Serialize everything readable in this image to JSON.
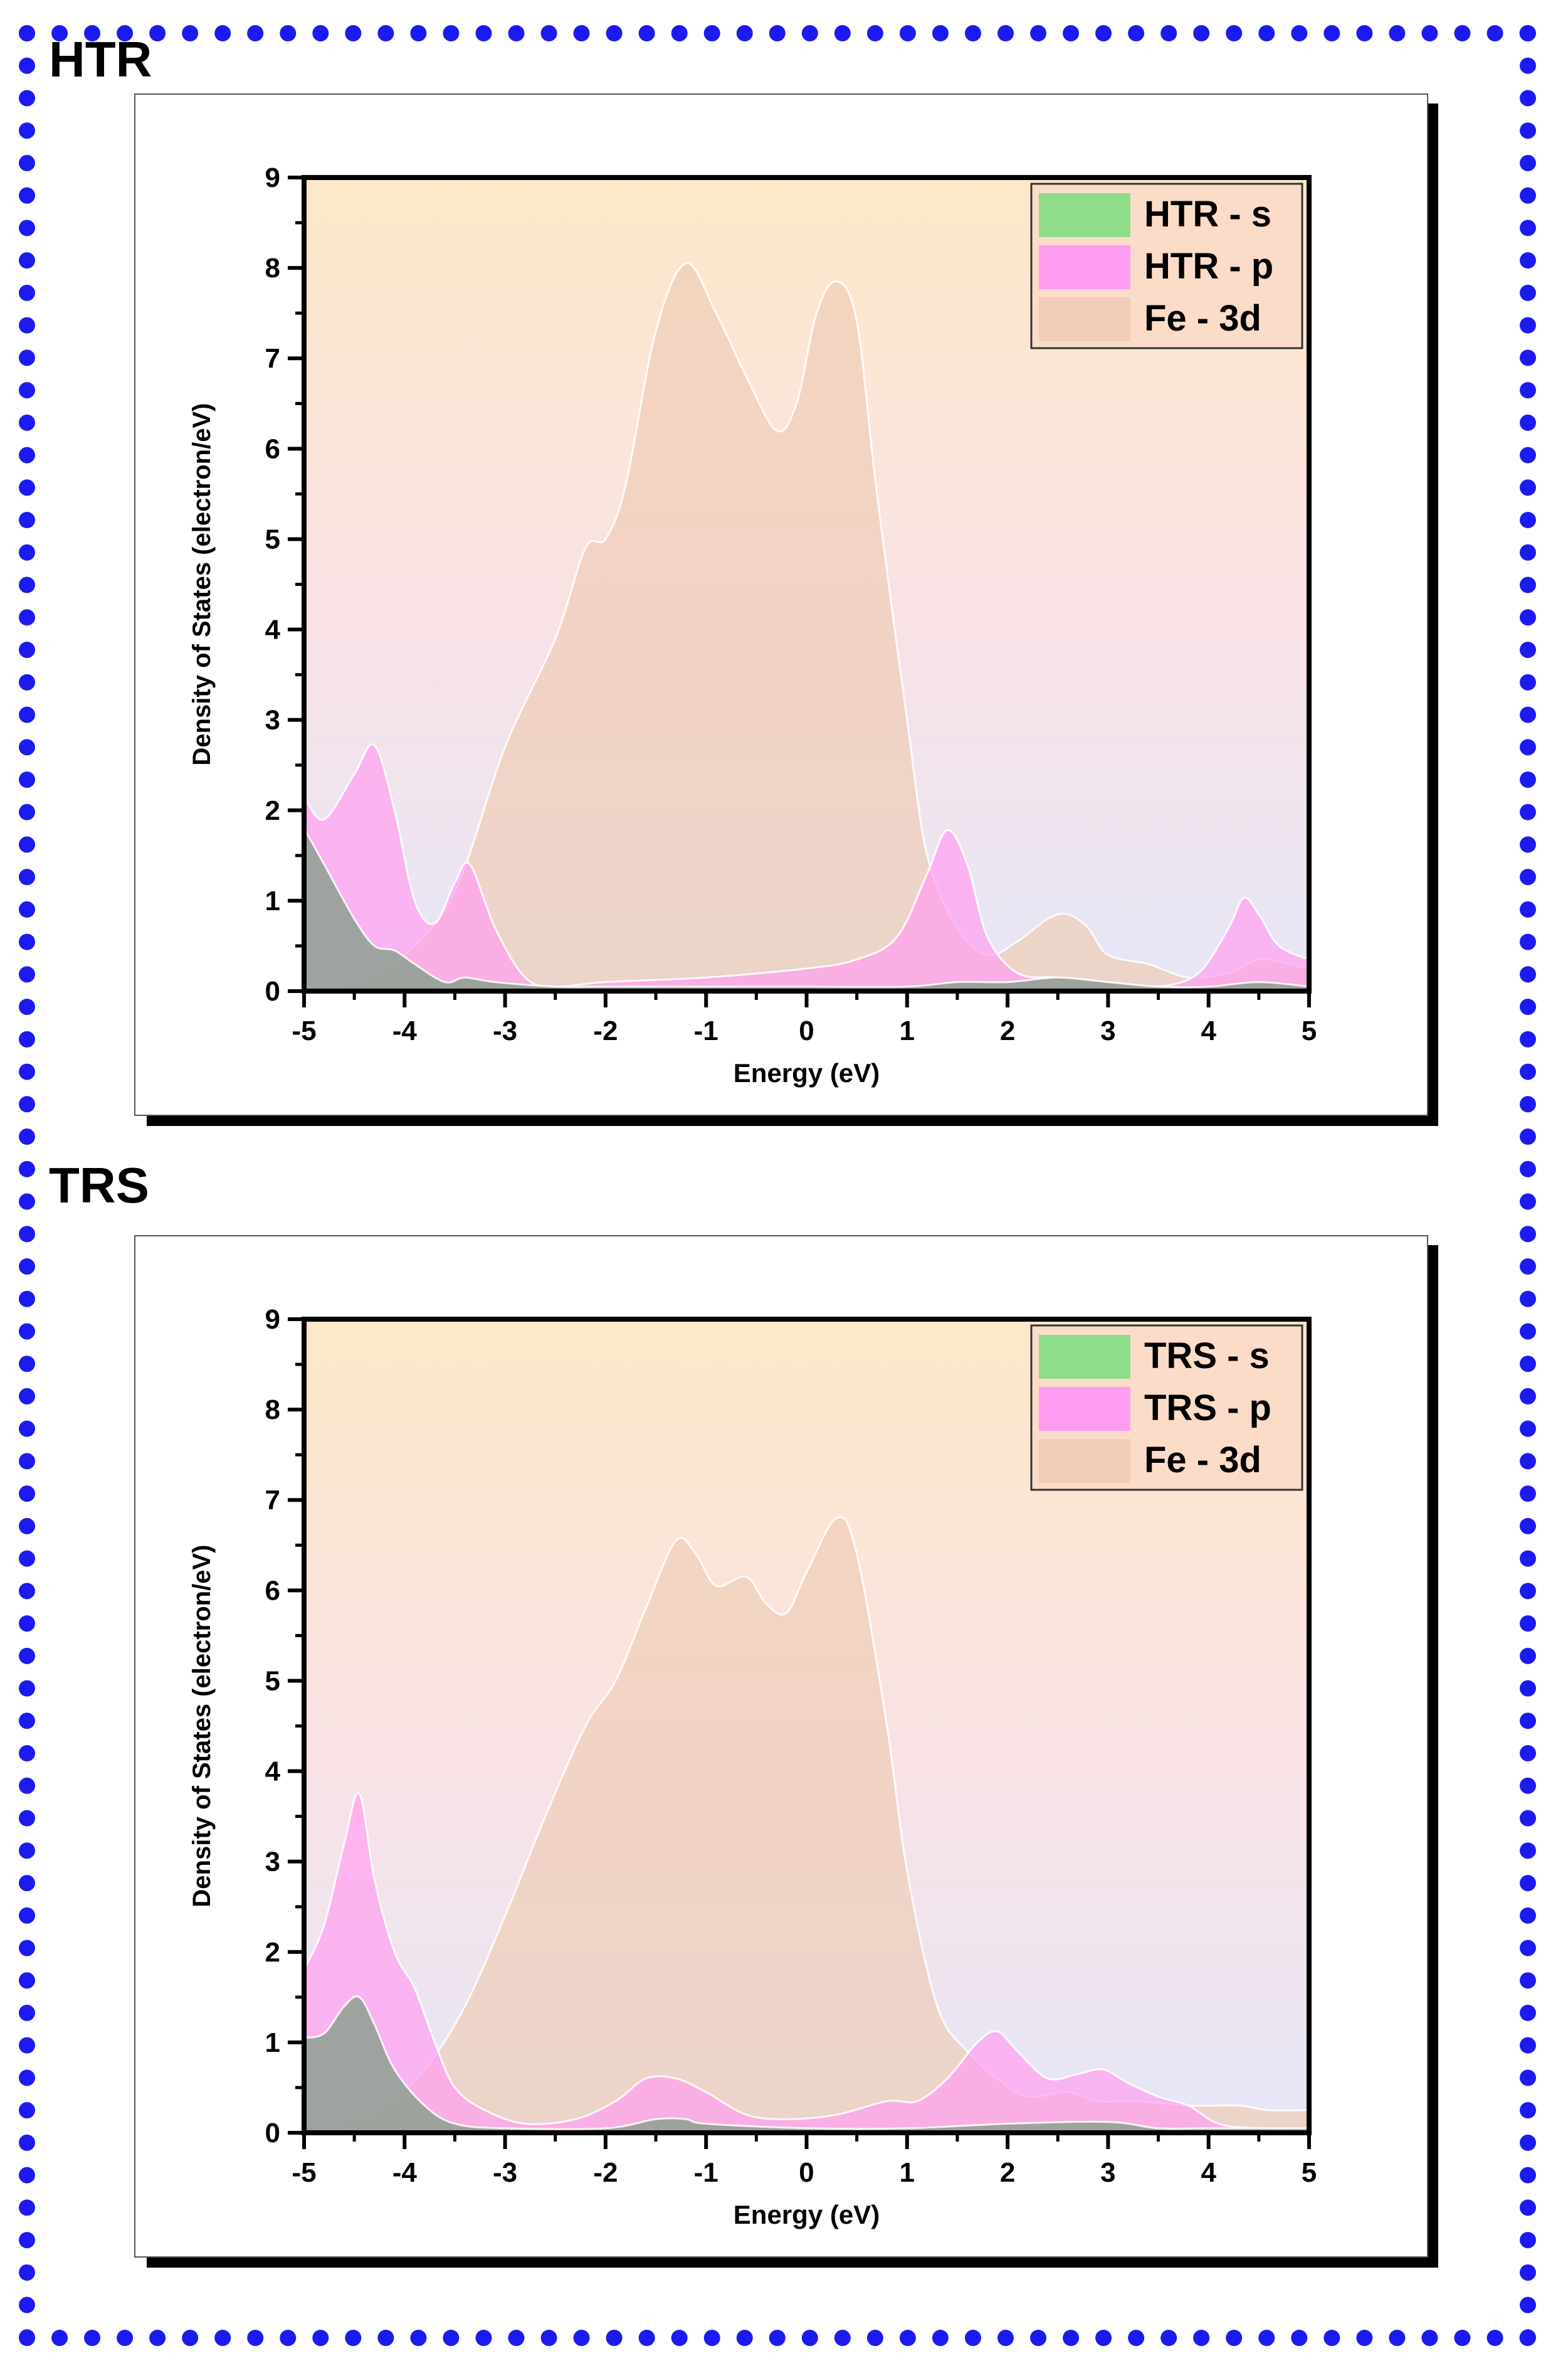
{
  "panels": [
    {
      "title": "HTR"
    },
    {
      "title": "TRS"
    }
  ],
  "colors": {
    "frame": "#1b1bf0",
    "s": "#8fdc8a",
    "p": "#ff9ef0",
    "d": "#efcdb8",
    "bg_top": "#fde8c8",
    "bg_bottom": "#e6e6f6"
  },
  "chart_data": [
    {
      "type": "area",
      "title": "",
      "xlabel": "Energy (eV)",
      "ylabel": "Density of States (electron/eV)",
      "xlim": [
        -5,
        5
      ],
      "ylim": [
        0,
        9
      ],
      "xticks": [
        "-5",
        "-4",
        "-3",
        "-2",
        "-1",
        "0",
        "1",
        "2",
        "3",
        "4",
        "5"
      ],
      "yticks": [
        "0",
        "1",
        "2",
        "3",
        "4",
        "5",
        "6",
        "7",
        "8",
        "9"
      ],
      "legend_position": "top-right",
      "series": [
        {
          "name": "Fe - 3d",
          "key": "d",
          "points": [
            [
              -5,
              0.05
            ],
            [
              -4.5,
              0.1
            ],
            [
              -4,
              0.4
            ],
            [
              -3.5,
              1.1
            ],
            [
              -3,
              2.7
            ],
            [
              -2.5,
              3.9
            ],
            [
              -2.2,
              4.9
            ],
            [
              -2,
              5.0
            ],
            [
              -1.8,
              5.6
            ],
            [
              -1.5,
              7.3
            ],
            [
              -1.2,
              8.05
            ],
            [
              -0.9,
              7.5
            ],
            [
              -0.6,
              6.8
            ],
            [
              -0.3,
              6.2
            ],
            [
              -0.1,
              6.5
            ],
            [
              0.1,
              7.5
            ],
            [
              0.3,
              7.85
            ],
            [
              0.5,
              7.4
            ],
            [
              0.7,
              5.5
            ],
            [
              1,
              3.0
            ],
            [
              1.2,
              1.5
            ],
            [
              1.5,
              0.7
            ],
            [
              1.8,
              0.4
            ],
            [
              2.1,
              0.55
            ],
            [
              2.4,
              0.8
            ],
            [
              2.6,
              0.85
            ],
            [
              2.8,
              0.7
            ],
            [
              3,
              0.4
            ],
            [
              3.4,
              0.3
            ],
            [
              3.8,
              0.15
            ],
            [
              4.2,
              0.2
            ],
            [
              4.5,
              0.35
            ],
            [
              4.8,
              0.3
            ],
            [
              5,
              0.25
            ]
          ]
        },
        {
          "name": "HTR - p",
          "key": "p",
          "points": [
            [
              -5,
              2.15
            ],
            [
              -4.8,
              1.9
            ],
            [
              -4.5,
              2.4
            ],
            [
              -4.3,
              2.72
            ],
            [
              -4.1,
              2.0
            ],
            [
              -3.9,
              1.0
            ],
            [
              -3.7,
              0.75
            ],
            [
              -3.5,
              1.2
            ],
            [
              -3.35,
              1.4
            ],
            [
              -3.1,
              0.7
            ],
            [
              -2.8,
              0.15
            ],
            [
              -2.5,
              0.05
            ],
            [
              -2,
              0.1
            ],
            [
              -1,
              0.15
            ],
            [
              0,
              0.25
            ],
            [
              0.5,
              0.35
            ],
            [
              0.9,
              0.6
            ],
            [
              1.2,
              1.3
            ],
            [
              1.4,
              1.78
            ],
            [
              1.6,
              1.4
            ],
            [
              1.8,
              0.6
            ],
            [
              2.1,
              0.2
            ],
            [
              2.5,
              0.15
            ],
            [
              3,
              0.1
            ],
            [
              3.5,
              0.05
            ],
            [
              3.9,
              0.2
            ],
            [
              4.2,
              0.7
            ],
            [
              4.35,
              1.03
            ],
            [
              4.5,
              0.85
            ],
            [
              4.7,
              0.5
            ],
            [
              5,
              0.35
            ]
          ]
        },
        {
          "name": "HTR - s",
          "key": "s",
          "points": [
            [
              -5,
              1.8
            ],
            [
              -4.8,
              1.4
            ],
            [
              -4.5,
              0.8
            ],
            [
              -4.3,
              0.5
            ],
            [
              -4.1,
              0.45
            ],
            [
              -3.9,
              0.3
            ],
            [
              -3.6,
              0.1
            ],
            [
              -3.4,
              0.15
            ],
            [
              -3.1,
              0.1
            ],
            [
              -2.5,
              0.05
            ],
            [
              -2,
              0.05
            ],
            [
              -1,
              0.05
            ],
            [
              0,
              0.05
            ],
            [
              1,
              0.05
            ],
            [
              1.5,
              0.1
            ],
            [
              2,
              0.1
            ],
            [
              2.5,
              0.15
            ],
            [
              3,
              0.1
            ],
            [
              3.5,
              0.05
            ],
            [
              4,
              0.05
            ],
            [
              4.5,
              0.1
            ],
            [
              5,
              0.05
            ]
          ]
        }
      ]
    },
    {
      "type": "area",
      "title": "",
      "xlabel": "Energy (eV)",
      "ylabel": "Density of States (electron/eV)",
      "xlim": [
        -5,
        5
      ],
      "ylim": [
        0,
        9
      ],
      "xticks": [
        "-5",
        "-4",
        "-3",
        "-2",
        "-1",
        "0",
        "1",
        "2",
        "3",
        "4",
        "5"
      ],
      "yticks": [
        "0",
        "1",
        "2",
        "3",
        "4",
        "5",
        "6",
        "7",
        "8",
        "9"
      ],
      "legend_position": "top-right",
      "series": [
        {
          "name": "Fe - 3d",
          "key": "d",
          "points": [
            [
              -5,
              0.05
            ],
            [
              -4.5,
              0.15
            ],
            [
              -4.2,
              0.3
            ],
            [
              -3.8,
              0.7
            ],
            [
              -3.4,
              1.4
            ],
            [
              -3,
              2.4
            ],
            [
              -2.6,
              3.5
            ],
            [
              -2.2,
              4.5
            ],
            [
              -1.9,
              5.0
            ],
            [
              -1.6,
              5.8
            ],
            [
              -1.3,
              6.55
            ],
            [
              -1.1,
              6.4
            ],
            [
              -0.9,
              6.05
            ],
            [
              -0.6,
              6.15
            ],
            [
              -0.4,
              5.85
            ],
            [
              -0.2,
              5.75
            ],
            [
              0,
              6.2
            ],
            [
              0.3,
              6.8
            ],
            [
              0.5,
              6.4
            ],
            [
              0.8,
              4.5
            ],
            [
              1,
              2.9
            ],
            [
              1.3,
              1.4
            ],
            [
              1.6,
              0.9
            ],
            [
              1.9,
              0.6
            ],
            [
              2.2,
              0.4
            ],
            [
              2.6,
              0.45
            ],
            [
              2.9,
              0.35
            ],
            [
              3.3,
              0.35
            ],
            [
              3.8,
              0.3
            ],
            [
              4.3,
              0.3
            ],
            [
              4.6,
              0.25
            ],
            [
              5,
              0.25
            ]
          ]
        },
        {
          "name": "TRS - p",
          "key": "p",
          "points": [
            [
              -5,
              1.8
            ],
            [
              -4.8,
              2.3
            ],
            [
              -4.6,
              3.2
            ],
            [
              -4.45,
              3.75
            ],
            [
              -4.3,
              2.8
            ],
            [
              -4.1,
              2.0
            ],
            [
              -3.9,
              1.6
            ],
            [
              -3.7,
              1.0
            ],
            [
              -3.5,
              0.5
            ],
            [
              -3.2,
              0.25
            ],
            [
              -2.8,
              0.1
            ],
            [
              -2.3,
              0.15
            ],
            [
              -1.9,
              0.35
            ],
            [
              -1.6,
              0.6
            ],
            [
              -1.3,
              0.6
            ],
            [
              -1,
              0.45
            ],
            [
              -0.6,
              0.2
            ],
            [
              -0.2,
              0.15
            ],
            [
              0.3,
              0.2
            ],
            [
              0.8,
              0.35
            ],
            [
              1.1,
              0.35
            ],
            [
              1.4,
              0.6
            ],
            [
              1.7,
              1.0
            ],
            [
              1.9,
              1.12
            ],
            [
              2.1,
              0.9
            ],
            [
              2.4,
              0.6
            ],
            [
              2.7,
              0.65
            ],
            [
              2.95,
              0.7
            ],
            [
              3.2,
              0.55
            ],
            [
              3.5,
              0.4
            ],
            [
              3.8,
              0.3
            ],
            [
              4.1,
              0.1
            ],
            [
              4.5,
              0.05
            ],
            [
              5,
              0.05
            ]
          ]
        },
        {
          "name": "TRS - s",
          "key": "s",
          "points": [
            [
              -5,
              1.05
            ],
            [
              -4.8,
              1.1
            ],
            [
              -4.6,
              1.4
            ],
            [
              -4.45,
              1.5
            ],
            [
              -4.3,
              1.2
            ],
            [
              -4.1,
              0.7
            ],
            [
              -3.8,
              0.3
            ],
            [
              -3.5,
              0.1
            ],
            [
              -3,
              0.05
            ],
            [
              -2,
              0.05
            ],
            [
              -1.5,
              0.15
            ],
            [
              -1.2,
              0.15
            ],
            [
              -1,
              0.1
            ],
            [
              0,
              0.05
            ],
            [
              1,
              0.05
            ],
            [
              2,
              0.1
            ],
            [
              3,
              0.12
            ],
            [
              3.5,
              0.05
            ],
            [
              4,
              0.05
            ],
            [
              5,
              0.05
            ]
          ]
        }
      ]
    }
  ]
}
